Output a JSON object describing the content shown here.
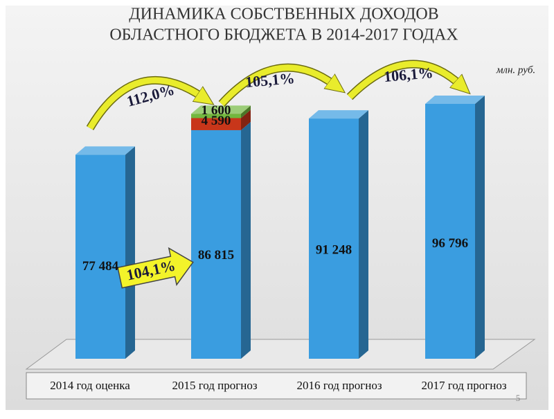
{
  "chart_data": {
    "type": "bar3d-stacked",
    "title_lines": [
      "ДИНАМИКА СОБСТВЕННЫХ ДОХОДОВ",
      "ОБЛАСТНОГО БЮДЖЕТА В 2014-2017 ГОДАХ"
    ],
    "unit": "млн. руб.",
    "categories": [
      "2014 год оценка",
      "2015 год прогноз",
      "2016 год прогноз",
      "2017 год прогноз"
    ],
    "series": [
      {
        "color": "#3a9de0",
        "values": [
          77484,
          86815,
          91248,
          96796
        ],
        "value_labels": [
          "77 484",
          "86 815",
          "91 248",
          "96 796"
        ]
      },
      {
        "color": "#c8361a",
        "values": [
          null,
          4590,
          null,
          null
        ],
        "value_labels": [
          null,
          "4 590",
          null,
          null
        ]
      },
      {
        "color": "#72b83e",
        "values": [
          null,
          1600,
          null,
          null
        ],
        "value_labels": [
          null,
          "1 600",
          null,
          null
        ]
      }
    ],
    "annotations": [
      "112,0%",
      "105,1%",
      "106,1%",
      "104,1%"
    ]
  },
  "page_number": "5"
}
